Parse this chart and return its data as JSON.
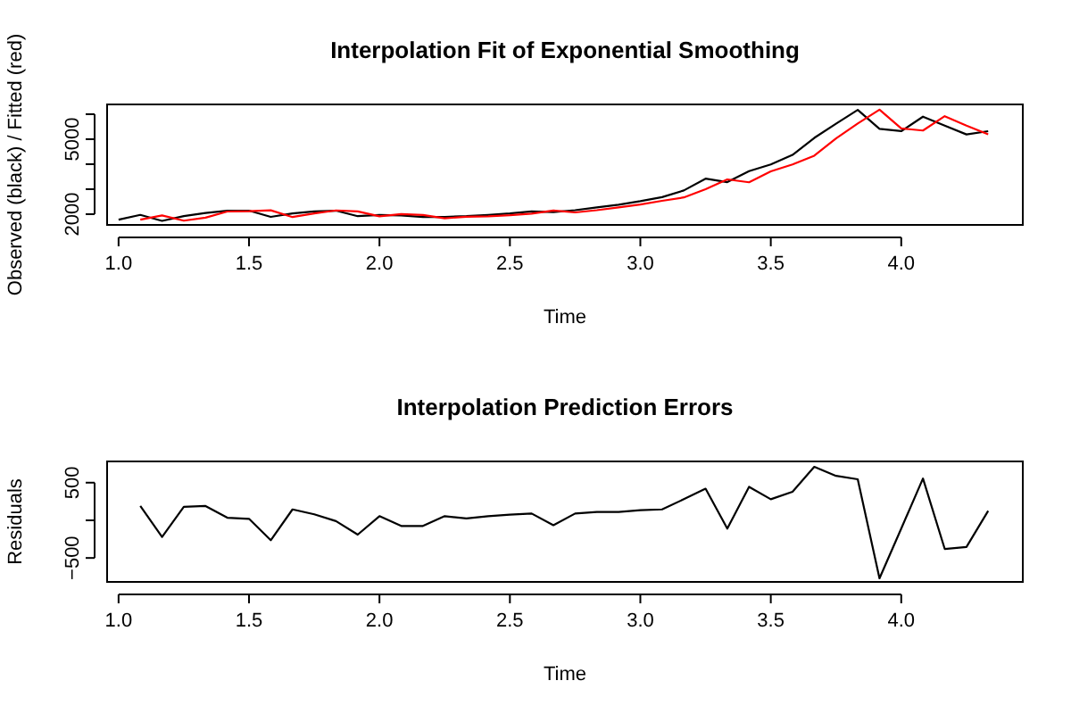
{
  "chart_data": [
    {
      "type": "line",
      "title": "Interpolation Fit of Exponential Smoothing",
      "xlabel": "Time",
      "ylabel": "Observed (black) / Fitted (red)",
      "xlim": [
        0.956,
        4.466
      ],
      "xticks": [
        {
          "value": 1,
          "label": "1.0"
        },
        {
          "value": 1.5,
          "label": "1.5"
        },
        {
          "value": 2,
          "label": "2.0"
        },
        {
          "value": 2.5,
          "label": "2.5"
        },
        {
          "value": 3,
          "label": "3.0"
        },
        {
          "value": 3.5,
          "label": "3.5"
        },
        {
          "value": 4,
          "label": "4.0"
        }
      ],
      "ylim": [
        1570,
        6390
      ],
      "yticks": [
        2000,
        {
          "value": 3000,
          "label": null
        },
        {
          "value": 4000,
          "label": null
        },
        5000,
        {
          "value": 6000,
          "label": null
        }
      ],
      "series": [
        {
          "color": "#000000",
          "x": [
            1,
            1.0833,
            1.1667,
            1.25,
            1.3333,
            1.4167,
            1.5,
            1.5833,
            1.6667,
            1.75,
            1.8333,
            1.9167,
            2,
            2.0833,
            2.1667,
            2.25,
            2.3333,
            2.4167,
            2.5,
            2.5833,
            2.6667,
            2.75,
            2.8333,
            2.9167,
            3,
            3.0833,
            3.1667,
            3.25,
            3.3333,
            3.4167,
            3.5,
            3.5833,
            3.6667,
            3.75,
            3.8333,
            3.9167,
            4,
            4.0833,
            4.1667,
            4.25,
            4.3333
          ],
          "values": [
            1780,
            1970,
            1730,
            1920,
            2050,
            2140,
            2140,
            1890,
            2030,
            2110,
            2140,
            1920,
            1970,
            1950,
            1890,
            1890,
            1920,
            1970,
            2030,
            2110,
            2080,
            2160,
            2270,
            2380,
            2520,
            2680,
            2950,
            3420,
            3280,
            3720,
            3990,
            4370,
            5050,
            5620,
            6170,
            5410,
            5320,
            5900,
            5540,
            5190,
            5320
          ]
        },
        {
          "color": "#ff0000",
          "x": [
            1.0833,
            1.1667,
            1.25,
            1.3333,
            1.4167,
            1.5,
            1.5833,
            1.6667,
            1.75,
            1.8333,
            1.9167,
            2,
            2.0833,
            2.1667,
            2.25,
            2.3333,
            2.4167,
            2.5,
            2.5833,
            2.6667,
            2.75,
            2.8333,
            2.9167,
            3,
            3.0833,
            3.1667,
            3.25,
            3.3333,
            3.4167,
            3.5,
            3.5833,
            3.6667,
            3.75,
            3.8333,
            3.9167,
            4,
            4.0833,
            4.1667,
            4.25,
            4.3333
          ],
          "values": [
            1780,
            1950,
            1740,
            1860,
            2105,
            2120,
            2155,
            1885,
            2030,
            2150,
            2110,
            1915,
            2000,
            1965,
            1835,
            1895,
            1915,
            1955,
            2020,
            2145,
            2070,
            2160,
            2270,
            2385,
            2535,
            2670,
            3000,
            3390,
            3275,
            3710,
            3990,
            4340,
            5030,
            5625,
            6180,
            5430,
            5345,
            5920,
            5545,
            5195
          ]
        }
      ]
    },
    {
      "type": "line",
      "title": "Interpolation Prediction Errors",
      "xlabel": "Time",
      "ylabel": "Residuals",
      "xlim": [
        0.956,
        4.466
      ],
      "xticks": [
        {
          "value": 1,
          "label": "1.0"
        },
        {
          "value": 1.5,
          "label": "1.5"
        },
        {
          "value": 2,
          "label": "2.0"
        },
        {
          "value": 2.5,
          "label": "2.5"
        },
        {
          "value": 3,
          "label": "3.0"
        },
        {
          "value": 3.5,
          "label": "3.5"
        },
        {
          "value": 4,
          "label": "4.0"
        }
      ],
      "ylim": [
        -818,
        782
      ],
      "yticks": [
        {
          "value": -500,
          "label": "−500"
        },
        {
          "value": 0,
          "label": null
        },
        500
      ],
      "series": [
        {
          "color": "#000000",
          "x": [
            1.0833,
            1.1667,
            1.25,
            1.3333,
            1.4167,
            1.5,
            1.5833,
            1.6667,
            1.75,
            1.8333,
            1.9167,
            2,
            2.0833,
            2.1667,
            2.25,
            2.3333,
            2.4167,
            2.5,
            2.5833,
            2.6667,
            2.75,
            2.8333,
            2.9167,
            3,
            3.0833,
            3.1667,
            3.25,
            3.3333,
            3.4167,
            3.5,
            3.5833,
            3.6667,
            3.75,
            3.8333,
            3.9167,
            4,
            4.0833,
            4.1667,
            4.25,
            4.3333
          ],
          "values": [
            190,
            -220,
            180,
            190,
            35,
            20,
            -265,
            145,
            80,
            -10,
            -190,
            55,
            -75,
            -75,
            55,
            25,
            55,
            75,
            90,
            -65,
            90,
            110,
            110,
            135,
            145,
            280,
            420,
            -110,
            445,
            280,
            380,
            710,
            590,
            545,
            -770,
            -110,
            555,
            -380,
            -355,
            125
          ]
        }
      ]
    }
  ]
}
